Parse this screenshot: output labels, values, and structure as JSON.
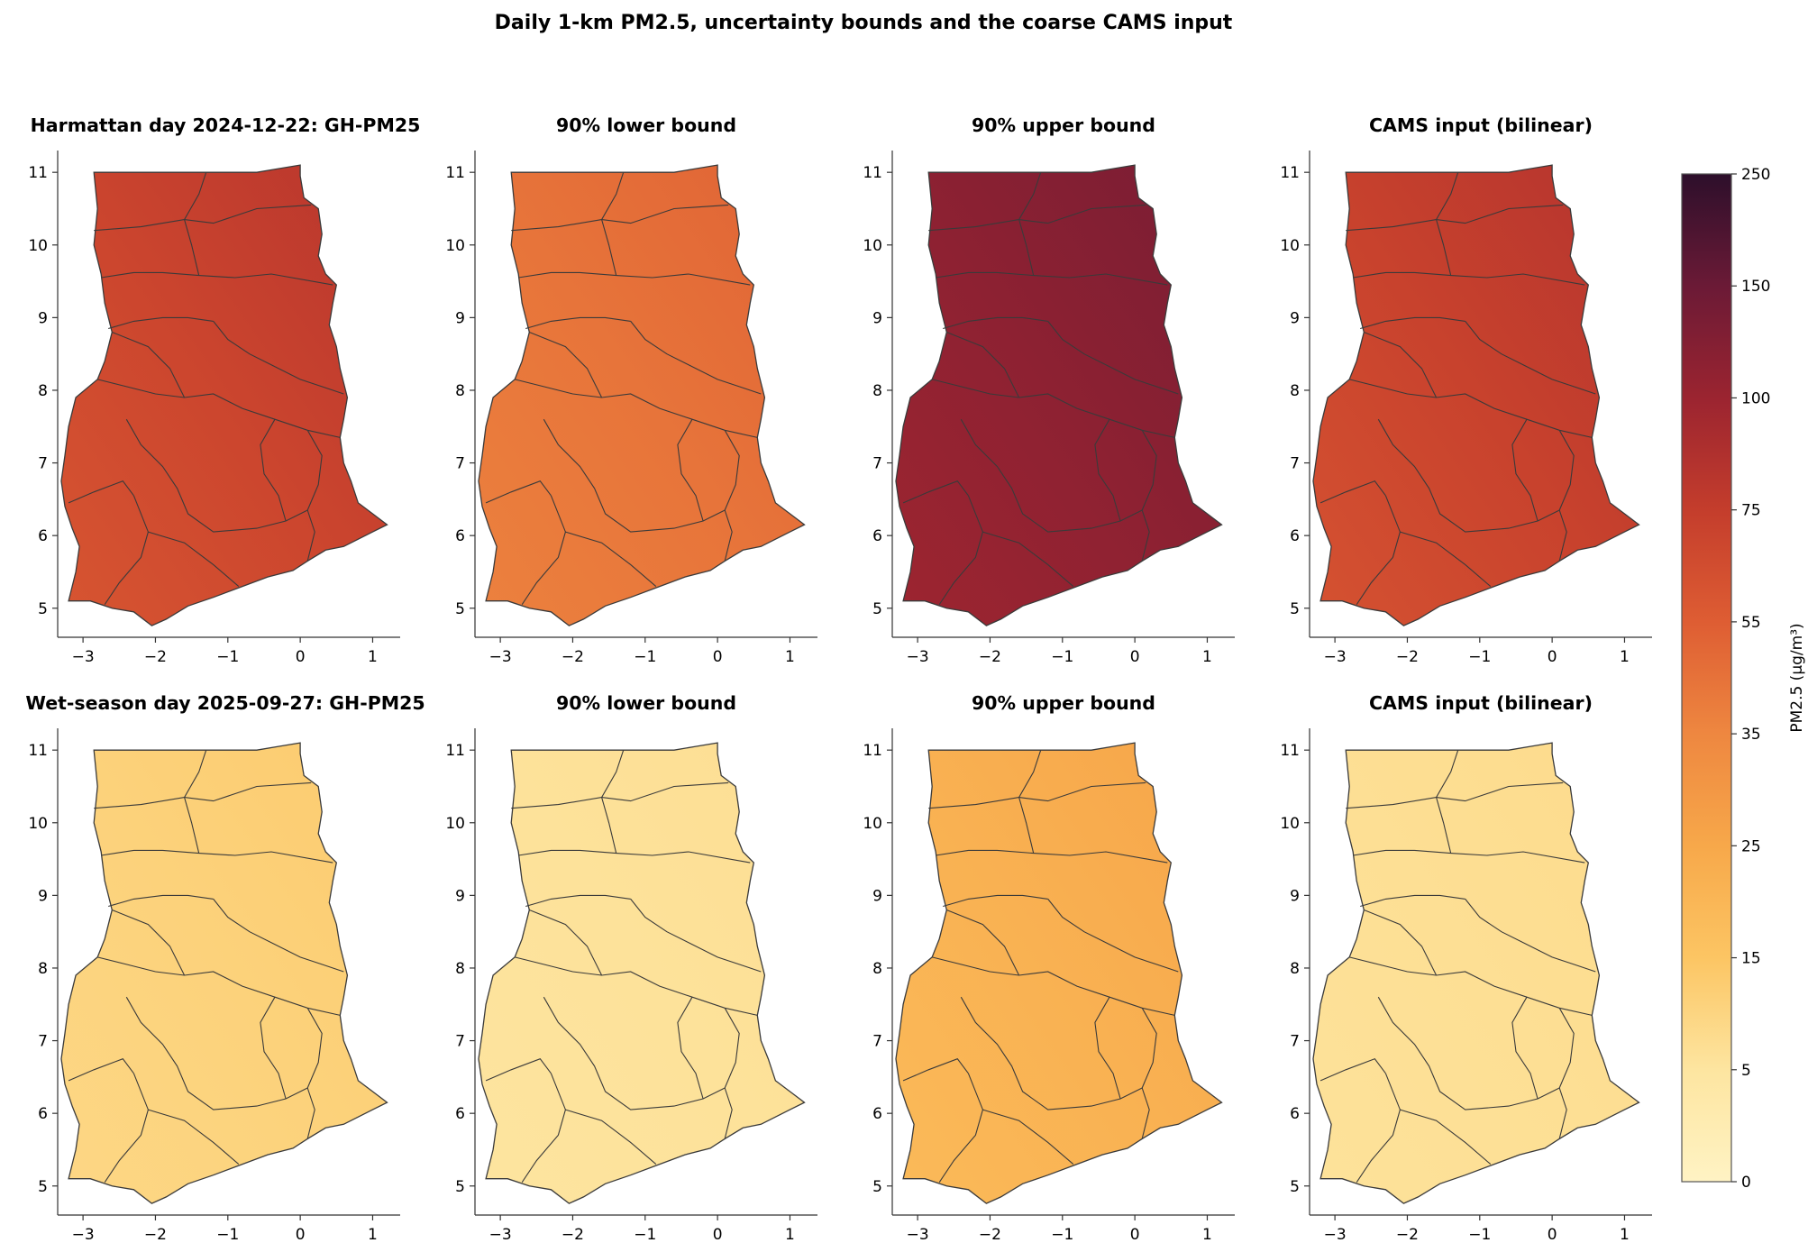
{
  "figure": {
    "title": "Daily 1-km PM2.5, uncertainty bounds and the coarse CAMS input"
  },
  "panels": [
    {
      "title": "Harmattan day 2024-12-22: GH-PM25",
      "value": 70
    },
    {
      "title": "90% lower bound",
      "value": 44
    },
    {
      "title": "90% upper bound",
      "value": 115
    },
    {
      "title": "CAMS input (bilinear)",
      "value": 72
    },
    {
      "title": "Wet-season day 2025-09-27: GH-PM25",
      "value": 11
    },
    {
      "title": "90% lower bound",
      "value": 6
    },
    {
      "title": "90% upper bound",
      "value": 22
    },
    {
      "title": "CAMS input (bilinear)",
      "value": 7
    }
  ],
  "axes": {
    "x_ticks": [
      "−3",
      "−2",
      "−1",
      "0",
      "1"
    ],
    "x_tick_values": [
      -3,
      -2,
      -1,
      0,
      1
    ],
    "y_ticks": [
      "5",
      "6",
      "7",
      "8",
      "9",
      "10",
      "11"
    ],
    "y_tick_values": [
      5,
      6,
      7,
      8,
      9,
      10,
      11
    ],
    "xlim": [
      -3.35,
      1.38
    ],
    "ylim": [
      4.6,
      11.3
    ]
  },
  "colorbar": {
    "label": "PM2.5 (µg/m³)",
    "ticks": [
      "0",
      "5",
      "15",
      "25",
      "35",
      "55",
      "75",
      "100",
      "150",
      "250"
    ],
    "tick_values": [
      0,
      5,
      15,
      25,
      35,
      55,
      75,
      100,
      150,
      250
    ],
    "colormap": "YlOrRd-like (cream → orange → red → dark purple)",
    "colors": [
      "#fff3c4",
      "#fde5a0",
      "#fcc563",
      "#f7a84a",
      "#ee8740",
      "#de5d33",
      "#c43d2c",
      "#9b2430",
      "#6b1a36",
      "#2d0f2b"
    ]
  }
}
